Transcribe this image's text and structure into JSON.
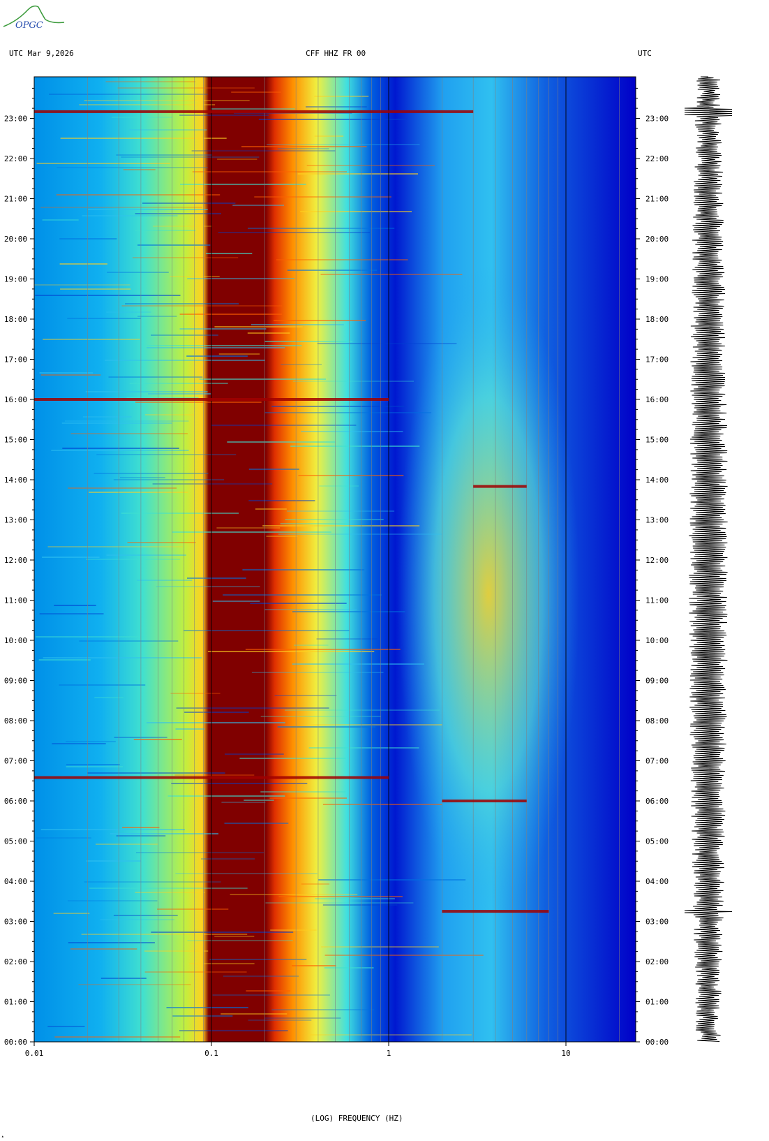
{
  "logo": {
    "text": "OPGC",
    "icon": "opgc-volcano-logo"
  },
  "header": {
    "left": "UTC  Mar 9,2026",
    "center": "CFF HHZ FR 00",
    "right": "UTC"
  },
  "colors": {
    "low": "#0000cc",
    "mid": "#33ccff",
    "high": "#ffff00",
    "peak": "#800000",
    "trace": "#000000"
  },
  "chart_data": {
    "type": "heatmap",
    "title": "CFF HHZ FR 00",
    "xlabel": "(LOG) FREQUENCY (HZ)",
    "ylabel": "UTC",
    "x_scale": "log",
    "xlim": [
      0.01,
      25
    ],
    "x_ticks": [
      "0.01",
      "0.1",
      "1",
      "10"
    ],
    "ylim_hours": [
      0,
      24
    ],
    "y_ticks": [
      "00:00",
      "01:00",
      "02:00",
      "03:00",
      "04:00",
      "05:00",
      "06:00",
      "07:00",
      "08:00",
      "09:00",
      "10:00",
      "11:00",
      "12:00",
      "13:00",
      "14:00",
      "15:00",
      "16:00",
      "17:00",
      "18:00",
      "19:00",
      "20:00",
      "21:00",
      "22:00",
      "23:00"
    ],
    "high_energy_band_hz": [
      0.1,
      0.2
    ],
    "events": [
      {
        "time": "23:10",
        "f_start_hz": 0.01,
        "f_end_hz": 3.0
      },
      {
        "time": "16:00",
        "f_start_hz": 0.01,
        "f_end_hz": 1.0
      },
      {
        "time": "13:50",
        "f_start_hz": 3.0,
        "f_end_hz": 6.0
      },
      {
        "time": "06:35",
        "f_start_hz": 0.01,
        "f_end_hz": 1.0
      },
      {
        "time": "06:00",
        "f_start_hz": 2.0,
        "f_end_hz": 6.0
      },
      {
        "time": "03:15",
        "f_start_hz": 2.0,
        "f_end_hz": 8.0
      }
    ]
  }
}
